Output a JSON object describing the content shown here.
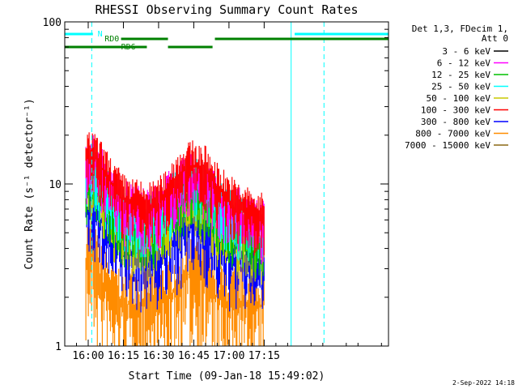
{
  "chart_data": {
    "type": "line",
    "title": "RHESSI Observing Summary Count Rates",
    "xlabel": "Start Time (09-Jan-18 15:49:02)",
    "ylabel": "Count Rate (s⁻¹ detector⁻¹)",
    "yscale": "log",
    "ylim": [
      1,
      100
    ],
    "xlim_minutes": [
      -10,
      128
    ],
    "x_ticks": [
      {
        "label": "16:00",
        "value": 0
      },
      {
        "label": "16:15",
        "value": 15
      },
      {
        "label": "16:30",
        "value": 30
      },
      {
        "label": "16:45",
        "value": 45
      },
      {
        "label": "17:00",
        "value": 60
      },
      {
        "label": "17:15",
        "value": 75
      }
    ],
    "y_ticks": [
      {
        "label": "1",
        "value": 1
      },
      {
        "label": "10",
        "value": 10
      },
      {
        "label": "100",
        "value": 100
      }
    ],
    "legend_header": [
      "Det 1,3, FDecim 1,",
      "Att 0"
    ],
    "legend_position": "right",
    "series": [
      {
        "name": "3 - 6 keV",
        "color": "#000000",
        "values": []
      },
      {
        "name": "6 - 12 keV",
        "color": "#ff00ff",
        "x": [
          -1,
          2,
          5,
          10,
          15,
          20,
          25,
          30,
          35,
          40,
          45,
          50,
          55,
          60,
          65,
          70,
          75
        ],
        "values": [
          12,
          14,
          12,
          9,
          7.5,
          7,
          6.5,
          7,
          8.5,
          10,
          11,
          10,
          8.5,
          7,
          6.5,
          6,
          5.5
        ]
      },
      {
        "name": "12 - 25 keV",
        "color": "#00c000",
        "x": [
          -1,
          2,
          5,
          10,
          15,
          20,
          25,
          30,
          35,
          40,
          45,
          50,
          55,
          60,
          65,
          70,
          75
        ],
        "values": [
          10,
          11,
          9,
          7,
          5.5,
          5,
          5,
          5.5,
          7,
          8.5,
          9,
          8,
          6.5,
          5.5,
          5,
          4.8,
          4.5
        ]
      },
      {
        "name": "25 - 50 keV",
        "color": "#00ffff",
        "x": [
          -1,
          2,
          5,
          10,
          15,
          20,
          25,
          30,
          35,
          40,
          45,
          50,
          55,
          60,
          65,
          70,
          75
        ],
        "values": [
          11,
          12,
          10,
          8,
          6.5,
          6,
          6,
          6.5,
          8,
          9.5,
          10.5,
          9.5,
          7.5,
          6.5,
          6,
          5.5,
          5
        ]
      },
      {
        "name": "50 - 100 keV",
        "color": "#c8c800",
        "x": [
          -1,
          2,
          5,
          10,
          15,
          20,
          25,
          30,
          35,
          40,
          45,
          50,
          55,
          60,
          65,
          70,
          75
        ],
        "values": [
          9,
          10,
          8,
          6,
          5,
          4.5,
          4.5,
          5,
          6,
          7,
          7.5,
          7,
          5.5,
          5,
          4.5,
          4.3,
          4.2
        ]
      },
      {
        "name": "100 - 300 keV",
        "color": "#ff0000",
        "x": [
          -1,
          2,
          5,
          10,
          15,
          20,
          25,
          30,
          35,
          40,
          45,
          50,
          55,
          60,
          65,
          70,
          75
        ],
        "values": [
          14,
          15,
          13,
          10,
          8,
          7.5,
          7,
          7.5,
          9.5,
          12,
          13,
          12,
          9.5,
          8,
          7,
          6.5,
          6
        ]
      },
      {
        "name": "300 - 800 keV",
        "color": "#0000ff",
        "x": [
          -1,
          2,
          5,
          10,
          15,
          20,
          25,
          30,
          35,
          40,
          45,
          50,
          55,
          60,
          65,
          70,
          75
        ],
        "values": [
          7,
          7.5,
          6,
          4.5,
          4,
          3.5,
          3.5,
          3.5,
          4,
          5,
          5.5,
          5,
          4,
          3.5,
          3.5,
          3.3,
          3.2
        ]
      },
      {
        "name": "800 - 7000 keV",
        "color": "#ff8c00",
        "x": [
          -1,
          2,
          5,
          10,
          15,
          20,
          25,
          30,
          35,
          40,
          45,
          50,
          55,
          60,
          65,
          70,
          75
        ],
        "values": [
          3.5,
          3.5,
          2.5,
          2,
          1.8,
          1.8,
          1.8,
          1.8,
          2,
          2.5,
          3,
          2.5,
          2,
          1.8,
          1.8,
          1.8,
          1.8
        ]
      },
      {
        "name": "7000 - 15000 keV",
        "color": "#8b6914",
        "values": []
      }
    ],
    "annotations": [
      {
        "label": "N",
        "color": "#00ffff"
      },
      {
        "label": "RD0",
        "color": "#008000"
      },
      {
        "label": "RD6",
        "color": "#008000"
      }
    ],
    "footer": "2-Sep-2022 14:18"
  }
}
